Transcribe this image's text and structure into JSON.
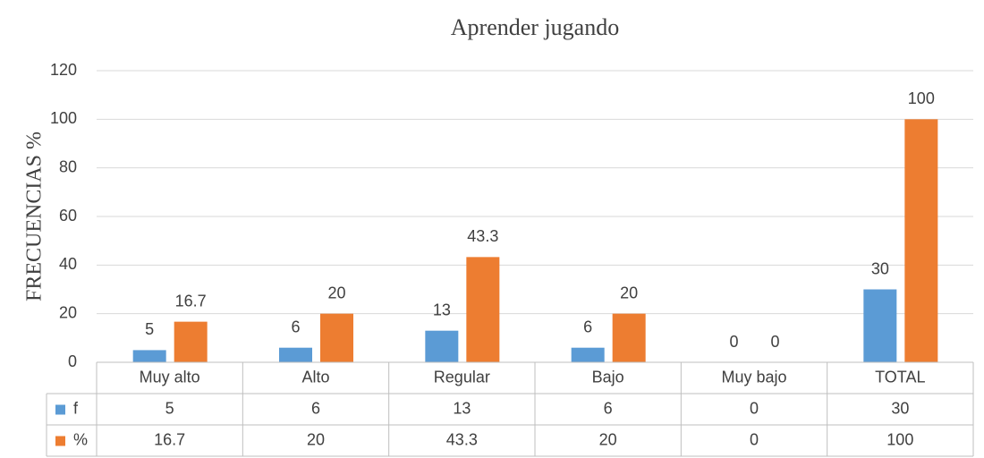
{
  "chart_data": {
    "type": "bar",
    "title": "Aprender jugando",
    "y_label": "FRECUENCIAS %",
    "categories": [
      "Muy alto",
      "Alto",
      "Regular",
      "Bajo",
      "Muy bajo",
      "TOTAL"
    ],
    "series": [
      {
        "name": "f",
        "color": "#5b9bd5",
        "values": [
          5,
          6,
          13,
          6,
          0,
          30
        ]
      },
      {
        "name": "%",
        "color": "#ed7d31",
        "values": [
          16.7,
          20,
          43.3,
          20,
          0,
          100
        ]
      }
    ],
    "ylim": [
      0,
      120
    ],
    "yticks": [
      0,
      20,
      40,
      60,
      80,
      100,
      120
    ],
    "grid": true,
    "data_table": true
  }
}
